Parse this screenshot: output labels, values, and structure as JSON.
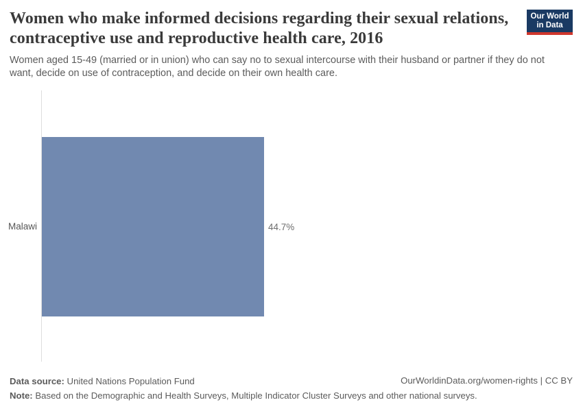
{
  "header": {
    "title": "Women who make informed decisions regarding their sexual relations, contraceptive use and reproductive health care, 2016",
    "subtitle": "Women aged 15-49 (married or in union) who can say no to sexual intercourse with their husband or partner if they do not want, decide on use of contraception, and decide on their own health care."
  },
  "logo": {
    "line1": "Our World",
    "line2": "in Data",
    "bg_color": "#1a3a63",
    "stripe_color": "#d0372d"
  },
  "chart_data": {
    "type": "bar",
    "orientation": "horizontal",
    "categories": [
      "Malawi"
    ],
    "values": [
      44.7
    ],
    "value_labels": [
      "44.7%"
    ],
    "unit": "%",
    "xlim": [
      0,
      100
    ],
    "grid": false,
    "legend": false,
    "bar_color": "#7189b0",
    "axis_line_color": "#dddddd",
    "title": "Women who make informed decisions regarding their sexual relations, contraceptive use and reproductive health care, 2016",
    "xlabel": "",
    "ylabel": ""
  },
  "footer": {
    "data_source_label": "Data source:",
    "data_source_value": " United Nations Population Fund",
    "note_label": "Note:",
    "note_value": " Based on the Demographic and Health Surveys, Multiple Indicator Cluster Surveys and other national surveys.",
    "link": "OurWorldinData.org/women-rights | CC BY"
  }
}
